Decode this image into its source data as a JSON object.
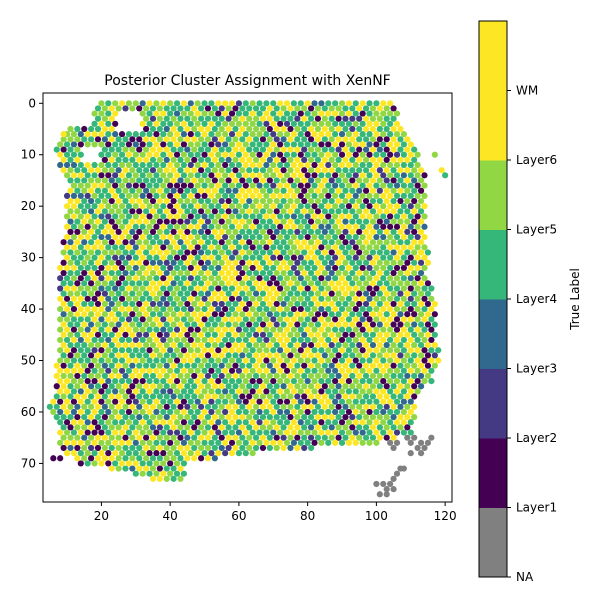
{
  "chart_data": {
    "type": "scatter",
    "title": "Posterior Cluster Assignment with XenNF",
    "xlabel": "",
    "ylabel": "",
    "xlim": [
      3,
      122
    ],
    "ylim": [
      77.5,
      -2
    ],
    "y_inverted": true,
    "xticks": [
      20,
      40,
      60,
      80,
      100,
      120
    ],
    "yticks": [
      0,
      10,
      20,
      30,
      40,
      50,
      60,
      70
    ],
    "grid": false,
    "colorbar": {
      "label": "True Label",
      "categories": [
        "NA",
        "Layer1",
        "Layer2",
        "Layer3",
        "Layer4",
        "Layer5",
        "Layer6",
        "WM"
      ],
      "colors": [
        "#808080",
        "#440154",
        "#443983",
        "#31688e",
        "#35b779",
        "#90d743",
        "#fde725",
        "#fde725"
      ]
    },
    "palette": {
      "Layer1": "#440154",
      "Layer2": "#443983",
      "Layer3": "#31688e",
      "Layer4": "#35b779",
      "Layer5": "#90d743",
      "Layer6": "#fde725",
      "NA": "#808080"
    },
    "tissue_outline_left": [
      [
        0,
        19
      ],
      [
        2,
        18
      ],
      [
        4,
        17
      ],
      [
        6,
        9
      ],
      [
        8,
        7
      ],
      [
        10,
        7
      ],
      [
        12,
        8
      ],
      [
        14,
        10
      ],
      [
        16,
        11
      ],
      [
        18,
        10
      ],
      [
        20,
        10
      ],
      [
        22,
        10
      ],
      [
        24,
        10
      ],
      [
        26,
        9
      ],
      [
        28,
        9
      ],
      [
        30,
        9
      ],
      [
        32,
        8
      ],
      [
        34,
        8
      ],
      [
        36,
        8
      ],
      [
        38,
        8
      ],
      [
        40,
        8
      ],
      [
        42,
        8
      ],
      [
        44,
        8
      ],
      [
        46,
        8
      ],
      [
        48,
        8
      ],
      [
        50,
        7
      ],
      [
        52,
        7
      ],
      [
        54,
        7
      ],
      [
        56,
        7
      ],
      [
        58,
        6
      ],
      [
        60,
        6
      ],
      [
        62,
        7
      ],
      [
        64,
        8
      ],
      [
        66,
        8
      ],
      [
        68,
        9
      ],
      [
        70,
        14
      ],
      [
        72,
        30
      ],
      [
        74,
        38
      ]
    ],
    "tissue_outline_right": [
      [
        0,
        104
      ],
      [
        2,
        106
      ],
      [
        4,
        107
      ],
      [
        6,
        108
      ],
      [
        8,
        110
      ],
      [
        10,
        112
      ],
      [
        12,
        113
      ],
      [
        14,
        114
      ],
      [
        16,
        114
      ],
      [
        18,
        114
      ],
      [
        20,
        114
      ],
      [
        22,
        114
      ],
      [
        24,
        114
      ],
      [
        26,
        114
      ],
      [
        28,
        115
      ],
      [
        30,
        115
      ],
      [
        32,
        115
      ],
      [
        34,
        114
      ],
      [
        36,
        116
      ],
      [
        38,
        117
      ],
      [
        40,
        117
      ],
      [
        42,
        117
      ],
      [
        44,
        117
      ],
      [
        46,
        117
      ],
      [
        48,
        118
      ],
      [
        50,
        118
      ],
      [
        52,
        117
      ],
      [
        54,
        116
      ],
      [
        56,
        113
      ],
      [
        58,
        111
      ],
      [
        60,
        111
      ],
      [
        62,
        111
      ],
      [
        64,
        110
      ],
      [
        66,
        101
      ],
      [
        68,
        64
      ],
      [
        70,
        44
      ],
      [
        72,
        44
      ],
      [
        74,
        42
      ]
    ],
    "na_points": [
      [
        100,
        74
      ],
      [
        101,
        76
      ],
      [
        102,
        74
      ],
      [
        103,
        76
      ],
      [
        104,
        74
      ],
      [
        104,
        66
      ],
      [
        105,
        67
      ],
      [
        105,
        73
      ],
      [
        106,
        66
      ],
      [
        106,
        72
      ],
      [
        107,
        71
      ],
      [
        108,
        71
      ],
      [
        109,
        65
      ],
      [
        110,
        66
      ],
      [
        110,
        68
      ],
      [
        111,
        65
      ],
      [
        112,
        67
      ],
      [
        113,
        66
      ],
      [
        113,
        68
      ],
      [
        114,
        67
      ],
      [
        115,
        66
      ],
      [
        116,
        65
      ],
      [
        103,
        75
      ],
      [
        105,
        75
      ]
    ],
    "outlier_points": [
      [
        117,
        10,
        "Layer5"
      ],
      [
        119,
        13,
        "Layer6"
      ],
      [
        120,
        14,
        "Layer4"
      ],
      [
        9,
        6,
        "Layer6"
      ],
      [
        11,
        5,
        "Layer5"
      ],
      [
        5,
        59,
        "Layer4"
      ],
      [
        6,
        69,
        "Layer1"
      ],
      [
        8,
        69,
        "Layer1"
      ]
    ],
    "notes": "Hexagonally packed spots on a 2-unit x / 1-unit y grid; each spot colored by posterior cluster (Layer1-Layer6). Gaps in the top-left region near (18-26, 2-12)."
  }
}
